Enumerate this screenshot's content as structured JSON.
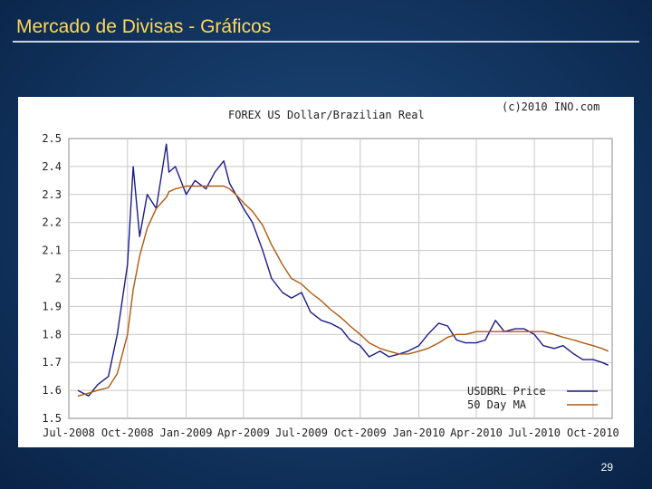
{
  "slide": {
    "title": "Mercado de Divisas - Gráficos",
    "page_number": "29"
  },
  "colors": {
    "price": "#1c1c8a",
    "ma": "#b05a10",
    "grid": "#c8c8c8",
    "title": "#ffd85a"
  },
  "chart_data": {
    "type": "line",
    "title": "FOREX US Dollar/Brazilian Real",
    "copyright": "(c)2010 INO.com",
    "xlabel": "",
    "ylabel": "",
    "grid": true,
    "legend_position": "bottom-right",
    "xlim": [
      "2008-07-01",
      "2010-10-31"
    ],
    "ylim": [
      1.5,
      2.5
    ],
    "x_ticks": [
      "Jul-2008",
      "Oct-2008",
      "Jan-2009",
      "Apr-2009",
      "Jul-2009",
      "Oct-2009",
      "Jan-2010",
      "Apr-2010",
      "Jul-2010",
      "Oct-2010"
    ],
    "y_ticks": [
      "2.5",
      "2.4",
      "2.3",
      "2.2",
      "2.1",
      "2",
      "1.9",
      "1.8",
      "1.7",
      "1.6",
      "1.5"
    ],
    "x": [
      "2008-07-15",
      "2008-08-01",
      "2008-08-15",
      "2008-09-01",
      "2008-09-15",
      "2008-10-01",
      "2008-10-10",
      "2008-10-20",
      "2008-11-01",
      "2008-11-15",
      "2008-12-01",
      "2008-12-05",
      "2008-12-15",
      "2009-01-01",
      "2009-01-15",
      "2009-02-01",
      "2009-02-15",
      "2009-03-01",
      "2009-03-10",
      "2009-03-20",
      "2009-04-01",
      "2009-04-15",
      "2009-05-01",
      "2009-05-15",
      "2009-06-01",
      "2009-06-15",
      "2009-07-01",
      "2009-07-15",
      "2009-08-01",
      "2009-08-15",
      "2009-09-01",
      "2009-09-15",
      "2009-10-01",
      "2009-10-15",
      "2009-11-01",
      "2009-11-15",
      "2009-12-01",
      "2009-12-15",
      "2010-01-01",
      "2010-01-15",
      "2010-02-01",
      "2010-02-15",
      "2010-03-01",
      "2010-03-15",
      "2010-04-01",
      "2010-04-15",
      "2010-05-01",
      "2010-05-15",
      "2010-06-01",
      "2010-06-15",
      "2010-07-01",
      "2010-07-15",
      "2010-08-01",
      "2010-08-15",
      "2010-09-01",
      "2010-09-15",
      "2010-10-01",
      "2010-10-15",
      "2010-10-25"
    ],
    "series": [
      {
        "name": "USDBRL Price",
        "values": [
          1.6,
          1.58,
          1.62,
          1.65,
          1.8,
          2.05,
          2.4,
          2.15,
          2.3,
          2.25,
          2.48,
          2.38,
          2.4,
          2.3,
          2.35,
          2.32,
          2.38,
          2.42,
          2.34,
          2.3,
          2.25,
          2.2,
          2.1,
          2.0,
          1.95,
          1.93,
          1.95,
          1.88,
          1.85,
          1.84,
          1.82,
          1.78,
          1.76,
          1.72,
          1.74,
          1.72,
          1.73,
          1.74,
          1.76,
          1.8,
          1.84,
          1.83,
          1.78,
          1.77,
          1.77,
          1.78,
          1.85,
          1.81,
          1.82,
          1.82,
          1.8,
          1.76,
          1.75,
          1.76,
          1.73,
          1.71,
          1.71,
          1.7,
          1.69
        ]
      },
      {
        "name": "50 Day MA",
        "values": [
          1.58,
          1.59,
          1.6,
          1.61,
          1.66,
          1.8,
          1.96,
          2.08,
          2.18,
          2.25,
          2.29,
          2.31,
          2.32,
          2.33,
          2.33,
          2.33,
          2.33,
          2.33,
          2.32,
          2.3,
          2.27,
          2.24,
          2.19,
          2.12,
          2.05,
          2.0,
          1.98,
          1.95,
          1.92,
          1.89,
          1.86,
          1.83,
          1.8,
          1.77,
          1.75,
          1.74,
          1.73,
          1.73,
          1.74,
          1.75,
          1.77,
          1.79,
          1.8,
          1.8,
          1.81,
          1.81,
          1.81,
          1.81,
          1.81,
          1.81,
          1.81,
          1.81,
          1.8,
          1.79,
          1.78,
          1.77,
          1.76,
          1.75,
          1.74
        ]
      }
    ]
  }
}
